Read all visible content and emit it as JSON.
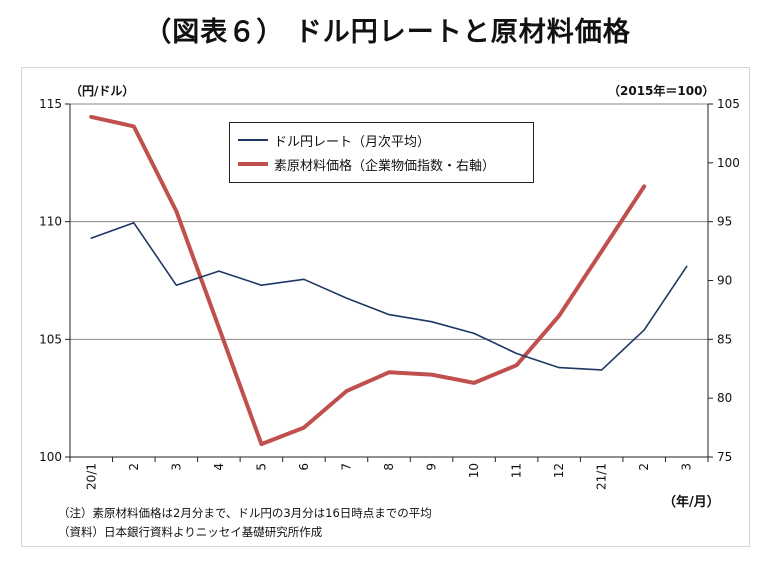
{
  "title": "（図表６） ドル円レートと原材料価格",
  "colors": {
    "usdjpy": "#1f3864",
    "materials": "#c0504d",
    "grid": "#868686",
    "axis": "#222222"
  },
  "chart_data": {
    "type": "line",
    "categories": [
      "20/1",
      "2",
      "3",
      "4",
      "5",
      "6",
      "7",
      "8",
      "9",
      "10",
      "11",
      "12",
      "21/1",
      "2",
      "3"
    ],
    "series": [
      {
        "name": "ドル円レート（月次平均）",
        "axis": "left",
        "values": [
          109.3,
          109.95,
          107.3,
          107.9,
          107.3,
          107.55,
          106.75,
          106.05,
          105.75,
          105.25,
          104.4,
          103.8,
          103.7,
          105.4,
          108.1
        ]
      },
      {
        "name": "素原材料価格（企業物価指数・右軸）",
        "axis": "right",
        "values": [
          103.9,
          103.1,
          95.9,
          null,
          76.1,
          77.5,
          80.6,
          82.2,
          82.0,
          81.3,
          82.8,
          87.0,
          null,
          98.0,
          null
        ]
      }
    ],
    "y_left": {
      "label": "（円/ドル）",
      "min": 100,
      "max": 115,
      "ticks": [
        100,
        105,
        110,
        115
      ]
    },
    "y_right": {
      "label": "（2015年＝100）",
      "min": 75,
      "max": 105,
      "ticks": [
        75,
        80,
        85,
        90,
        95,
        100,
        105
      ]
    },
    "xlabel": "（年/月）",
    "gridlines": true
  },
  "notes": [
    "（注）素原材料価格は2月分まで、ドル円の3月分は16日時点までの平均",
    "（資料）日本銀行資料よりニッセイ基礎研究所作成"
  ]
}
